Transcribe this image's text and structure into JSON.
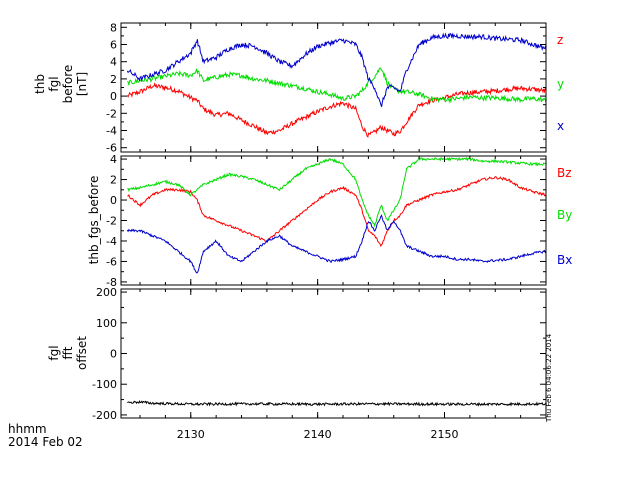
{
  "chart_data": [
    {
      "type": "line",
      "ylabel_lines": [
        "thb",
        "fgl",
        "before",
        "[nT]"
      ],
      "ylim": [
        -6.5,
        8.5
      ],
      "yticks": [
        -6,
        -4,
        -2,
        0,
        2,
        4,
        6,
        8
      ],
      "x": [
        2125,
        2126,
        2127,
        2128,
        2129,
        2130,
        2130.5,
        2131,
        2132,
        2133,
        2134,
        2135,
        2136,
        2137,
        2138,
        2139,
        2140,
        2141,
        2142,
        2143,
        2143.5,
        2144,
        2144.5,
        2145,
        2145.5,
        2146,
        2146.5,
        2147,
        2148,
        2149,
        2150,
        2151,
        2152,
        2153,
        2154,
        2155,
        2156,
        2157,
        2158
      ],
      "series": [
        {
          "name": "z",
          "color": "#ff0000",
          "values": [
            0.0,
            0.5,
            1.2,
            1.0,
            0.6,
            -0.2,
            -0.5,
            -1.5,
            -2.2,
            -2.0,
            -2.8,
            -3.5,
            -4.3,
            -4.0,
            -3.2,
            -2.5,
            -1.8,
            -1.2,
            -0.8,
            -1.5,
            -3.5,
            -4.6,
            -4.2,
            -3.6,
            -4.0,
            -4.4,
            -4.1,
            -3.0,
            -1.0,
            -0.5,
            -0.2,
            0.2,
            0.4,
            0.5,
            0.6,
            0.8,
            0.9,
            0.8,
            0.6
          ]
        },
        {
          "name": "y",
          "color": "#00dd00",
          "values": [
            1.5,
            1.8,
            2.0,
            2.3,
            2.6,
            2.4,
            3.0,
            1.8,
            2.2,
            2.5,
            2.4,
            2.0,
            1.8,
            1.5,
            1.2,
            0.9,
            0.5,
            0.2,
            -0.3,
            0.0,
            0.6,
            1.6,
            2.3,
            3.4,
            1.5,
            0.8,
            0.6,
            0.5,
            0.2,
            -0.3,
            -0.4,
            -0.3,
            -0.1,
            -0.2,
            -0.2,
            -0.3,
            -0.4,
            -0.3,
            -0.5
          ]
        },
        {
          "name": "x",
          "color": "#0000cc",
          "values": [
            3.0,
            2.0,
            2.5,
            3.0,
            4.0,
            5.0,
            6.5,
            4.0,
            4.5,
            5.5,
            6.0,
            5.8,
            5.0,
            4.0,
            3.5,
            4.8,
            5.8,
            6.2,
            6.5,
            6.0,
            4.5,
            2.0,
            1.0,
            -1.2,
            1.0,
            1.0,
            0.5,
            3.0,
            6.0,
            6.8,
            7.0,
            7.0,
            6.9,
            6.9,
            6.7,
            6.6,
            6.5,
            6.0,
            5.5
          ]
        }
      ]
    },
    {
      "type": "line",
      "ylabel_lines": [
        "thb_fgs_before"
      ],
      "ylim": [
        -8.3,
        4.3
      ],
      "yticks": [
        -8,
        -6,
        -4,
        -2,
        0,
        2,
        4
      ],
      "x": [
        2125,
        2126,
        2127,
        2128,
        2129,
        2130,
        2130.5,
        2131,
        2132,
        2133,
        2134,
        2135,
        2136,
        2137,
        2138,
        2139,
        2140,
        2141,
        2142,
        2143,
        2143.5,
        2144,
        2144.5,
        2145,
        2145.5,
        2146,
        2146.5,
        2147,
        2148,
        2149,
        2150,
        2151,
        2152,
        2153,
        2154,
        2155,
        2156,
        2157,
        2158
      ],
      "series": [
        {
          "name": "Bz",
          "color": "#ff0000",
          "values": [
            0.5,
            -0.5,
            0.5,
            1.0,
            1.0,
            0.8,
            0.0,
            -1.5,
            -2.0,
            -2.5,
            -3.0,
            -3.5,
            -4.0,
            -3.0,
            -2.0,
            -1.0,
            0.0,
            0.8,
            1.2,
            0.5,
            -1.0,
            -3.0,
            -3.5,
            -4.5,
            -3.0,
            -2.0,
            -1.5,
            -0.5,
            0.0,
            0.5,
            0.8,
            1.0,
            1.5,
            2.0,
            2.2,
            2.0,
            1.2,
            0.8,
            0.5
          ]
        },
        {
          "name": "By",
          "color": "#00dd00",
          "values": [
            1.0,
            1.2,
            1.5,
            1.8,
            1.5,
            0.5,
            1.0,
            1.5,
            2.0,
            2.5,
            2.3,
            2.0,
            1.5,
            1.0,
            2.0,
            3.0,
            3.5,
            4.0,
            3.5,
            2.0,
            0.0,
            -1.5,
            -2.5,
            -0.5,
            -2.0,
            -1.0,
            0.0,
            3.0,
            4.0,
            4.0,
            4.0,
            4.0,
            4.0,
            3.8,
            3.8,
            3.7,
            3.6,
            3.5,
            3.5
          ]
        },
        {
          "name": "Bx",
          "color": "#0000cc",
          "values": [
            -3.0,
            -3.0,
            -3.5,
            -4.0,
            -5.0,
            -6.0,
            -7.2,
            -5.0,
            -4.0,
            -5.5,
            -6.0,
            -5.0,
            -4.0,
            -3.5,
            -4.5,
            -5.0,
            -5.5,
            -6.0,
            -5.8,
            -5.5,
            -4.0,
            -2.0,
            -3.0,
            -1.5,
            -3.0,
            -2.0,
            -3.0,
            -4.5,
            -5.0,
            -5.5,
            -5.5,
            -5.8,
            -5.8,
            -6.0,
            -5.9,
            -5.8,
            -5.5,
            -5.2,
            -5.0
          ]
        }
      ]
    },
    {
      "type": "line",
      "ylabel_lines": [
        "fgl",
        "fft",
        "offset"
      ],
      "ylim": [
        -210,
        210
      ],
      "yticks": [
        -200,
        -100,
        0,
        100,
        200
      ],
      "x": [
        2125,
        2126,
        2127,
        2128,
        2130,
        2135,
        2140,
        2145,
        2150,
        2155,
        2158
      ],
      "series": [
        {
          "name": "",
          "color": "#000000",
          "values": [
            -160,
            -158,
            -162,
            -163,
            -165,
            -164,
            -165,
            -164,
            -165,
            -165,
            -164
          ]
        }
      ]
    }
  ],
  "x_axis": {
    "xlim": [
      2124.5,
      2158
    ],
    "ticks": [
      2130,
      2140,
      2150
    ]
  },
  "footer": {
    "line1": "hhmm",
    "line2": "2014 Feb 02"
  },
  "stamp": "Thu Feb  6 04:06:22 2014"
}
